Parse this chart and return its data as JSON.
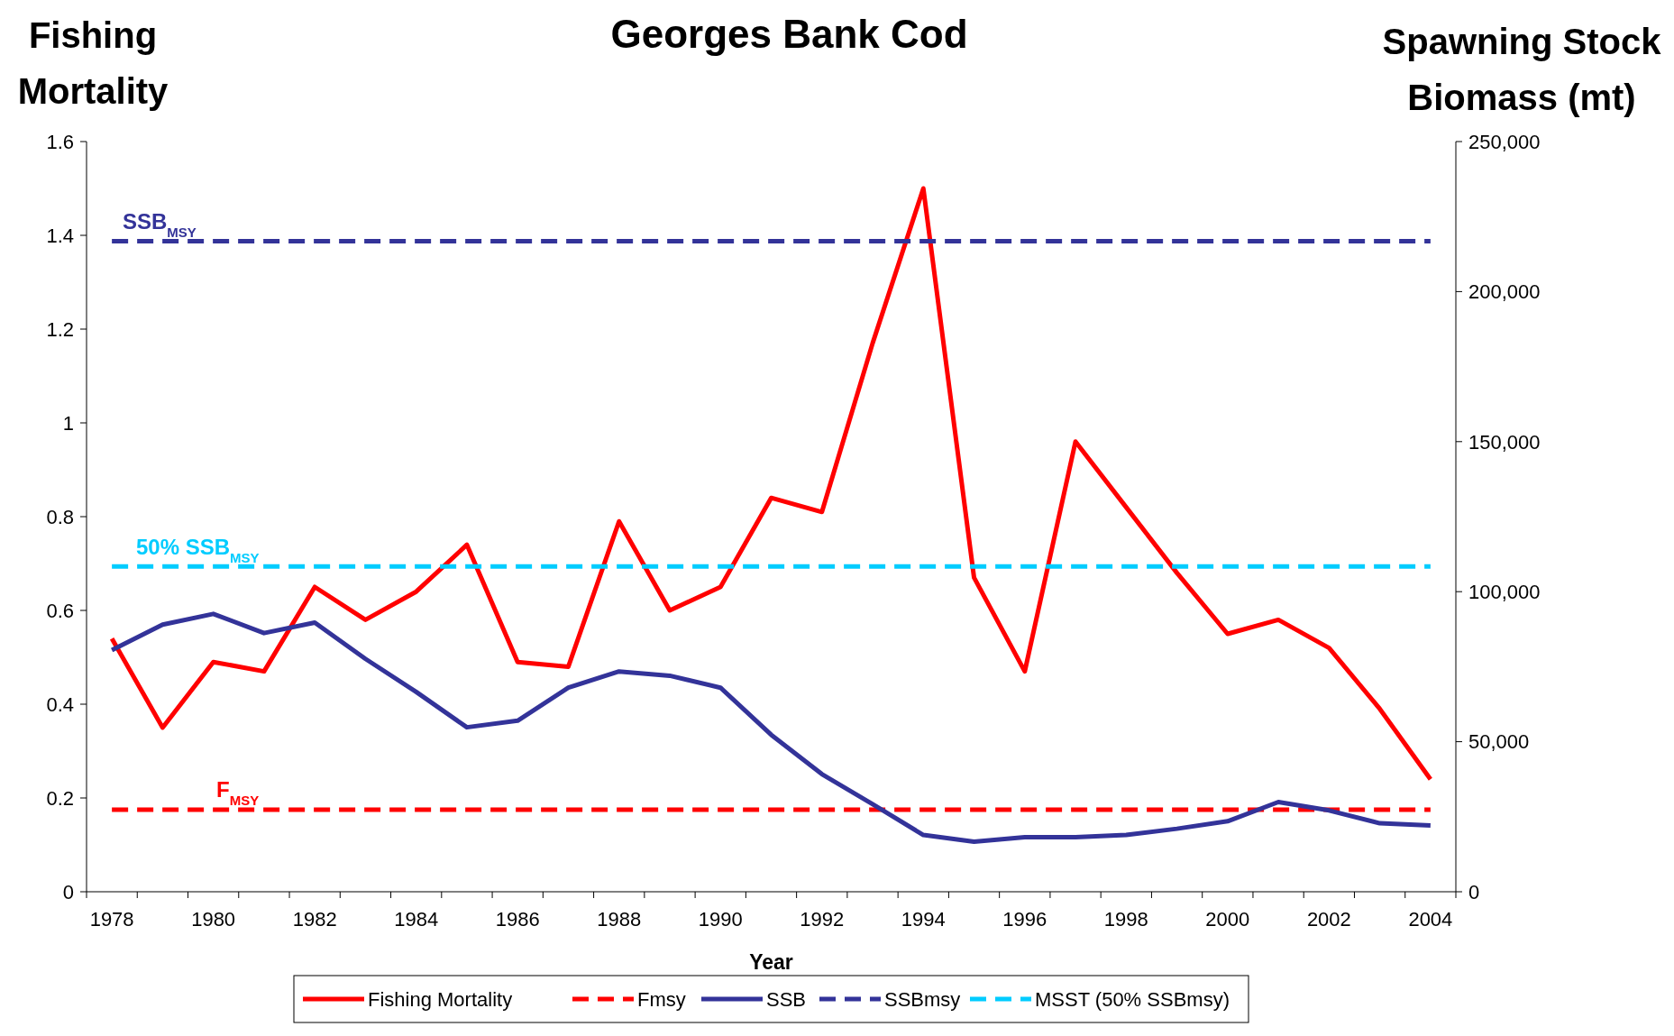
{
  "chart_data": {
    "type": "line",
    "title": "Georges Bank Cod",
    "xlabel": "Year",
    "ylabel": "Fishing Mortality",
    "y2label": "Spawning Stock Biomass (mt)",
    "categories": [
      "1978",
      null,
      "1980",
      null,
      "1982",
      null,
      "1984",
      null,
      "1986",
      null,
      "1988",
      null,
      "1990",
      null,
      "1992",
      null,
      "1994",
      null,
      "1996",
      null,
      "1998",
      null,
      "2000",
      null,
      "2002",
      null,
      "2004"
    ],
    "ylim": [
      0,
      1.6
    ],
    "yticks": [
      0,
      0.2,
      0.4,
      0.6,
      0.8,
      1,
      1.2,
      1.4,
      1.6
    ],
    "y2lim": [
      0,
      250000
    ],
    "y2ticks": [
      {
        "value": 0,
        "label": "0"
      },
      {
        "value": 50000,
        "label": "50,000"
      },
      {
        "value": 100000,
        "label": "100,000"
      },
      {
        "value": 150000,
        "label": "150,000"
      },
      {
        "value": 200000,
        "label": "200,000"
      },
      {
        "value": 250000,
        "label": "250,000"
      }
    ],
    "legend": "bottom",
    "grid": false,
    "series": [
      {
        "name": "Fishing Mortality",
        "color": "#ff0000",
        "line_style": "solid",
        "values": [
          0.54,
          0.35,
          0.49,
          0.47,
          0.65,
          0.58,
          0.64,
          0.74,
          0.49,
          0.48,
          0.79,
          0.6,
          0.65,
          0.84,
          0.81,
          1.17,
          1.5,
          0.67,
          0.47,
          0.96,
          0.82,
          0.68,
          0.55,
          0.58,
          0.52,
          0.39,
          0.24
        ]
      },
      {
        "name": "Fmsy",
        "color": "#ff0000",
        "line_style": "dashed",
        "values": [
          0.175,
          0.175,
          0.175,
          0.175,
          0.175,
          0.175,
          0.175,
          0.175,
          0.175,
          0.175,
          0.175,
          0.175,
          0.175,
          0.175,
          0.175,
          0.175,
          0.175,
          0.175,
          0.175,
          0.175,
          0.175,
          0.175,
          0.175,
          0.175,
          0.175,
          0.175,
          0.175
        ]
      },
      {
        "name": "SSB",
        "color": "#333399",
        "line_style": "solid",
        "axis": "y2",
        "values": [
          80500,
          89000,
          92600,
          86200,
          89700,
          77600,
          66600,
          54800,
          57000,
          68000,
          73400,
          72000,
          68000,
          52300,
          39200,
          29200,
          18900,
          16700,
          18200,
          18200,
          18900,
          21000,
          23500,
          29900,
          27100,
          22800,
          22100
        ]
      },
      {
        "name": "SSBmsy",
        "color": "#333399",
        "line_style": "dashed",
        "axis": "y2",
        "values": [
          216800,
          216800,
          216800,
          216800,
          216800,
          216800,
          216800,
          216800,
          216800,
          216800,
          216800,
          216800,
          216800,
          216800,
          216800,
          216800,
          216800,
          216800,
          216800,
          216800,
          216800,
          216800,
          216800,
          216800,
          216800,
          216800,
          216800
        ]
      },
      {
        "name": "MSST (50% SSBmsy)",
        "color": "#00ccff",
        "line_style": "dashed",
        "axis": "y2",
        "values": [
          108400,
          108400,
          108400,
          108400,
          108400,
          108400,
          108400,
          108400,
          108400,
          108400,
          108400,
          108400,
          108400,
          108400,
          108400,
          108400,
          108400,
          108400,
          108400,
          108400,
          108400,
          108400,
          108400,
          108400,
          108400,
          108400,
          108400
        ]
      }
    ],
    "annotations": [
      "SSB$_{MSY}$",
      "50% SSB$_{MSY}$",
      "F$_{MSY}$"
    ]
  }
}
